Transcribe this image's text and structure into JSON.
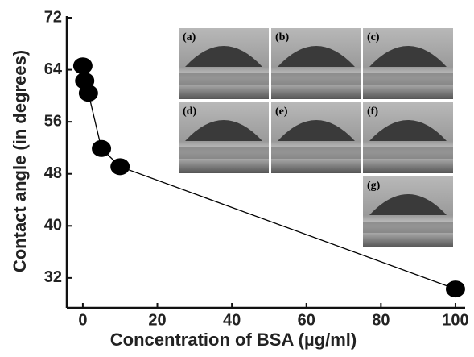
{
  "chart_data": {
    "type": "line",
    "xlabel": "Concentration of BSA (µg/ml)",
    "ylabel": "Contact angle (in degrees)",
    "x": [
      0,
      0.5,
      1.5,
      5,
      10,
      100
    ],
    "series": [
      {
        "color": "#000000",
        "values": [
          64.6,
          62.3,
          60.4,
          51.9,
          49.1,
          30.3
        ]
      }
    ],
    "xlim": [
      -4.3,
      102.6
    ],
    "ylim": [
      27.4,
      72
    ],
    "xticks": [
      0,
      20,
      40,
      60,
      80,
      100
    ],
    "yticks": [
      32,
      40,
      48,
      56,
      64,
      72
    ],
    "insets": [
      "(a)",
      "(b)",
      "(c)",
      "(d)",
      "(e)",
      "(f)",
      "(g)"
    ]
  }
}
